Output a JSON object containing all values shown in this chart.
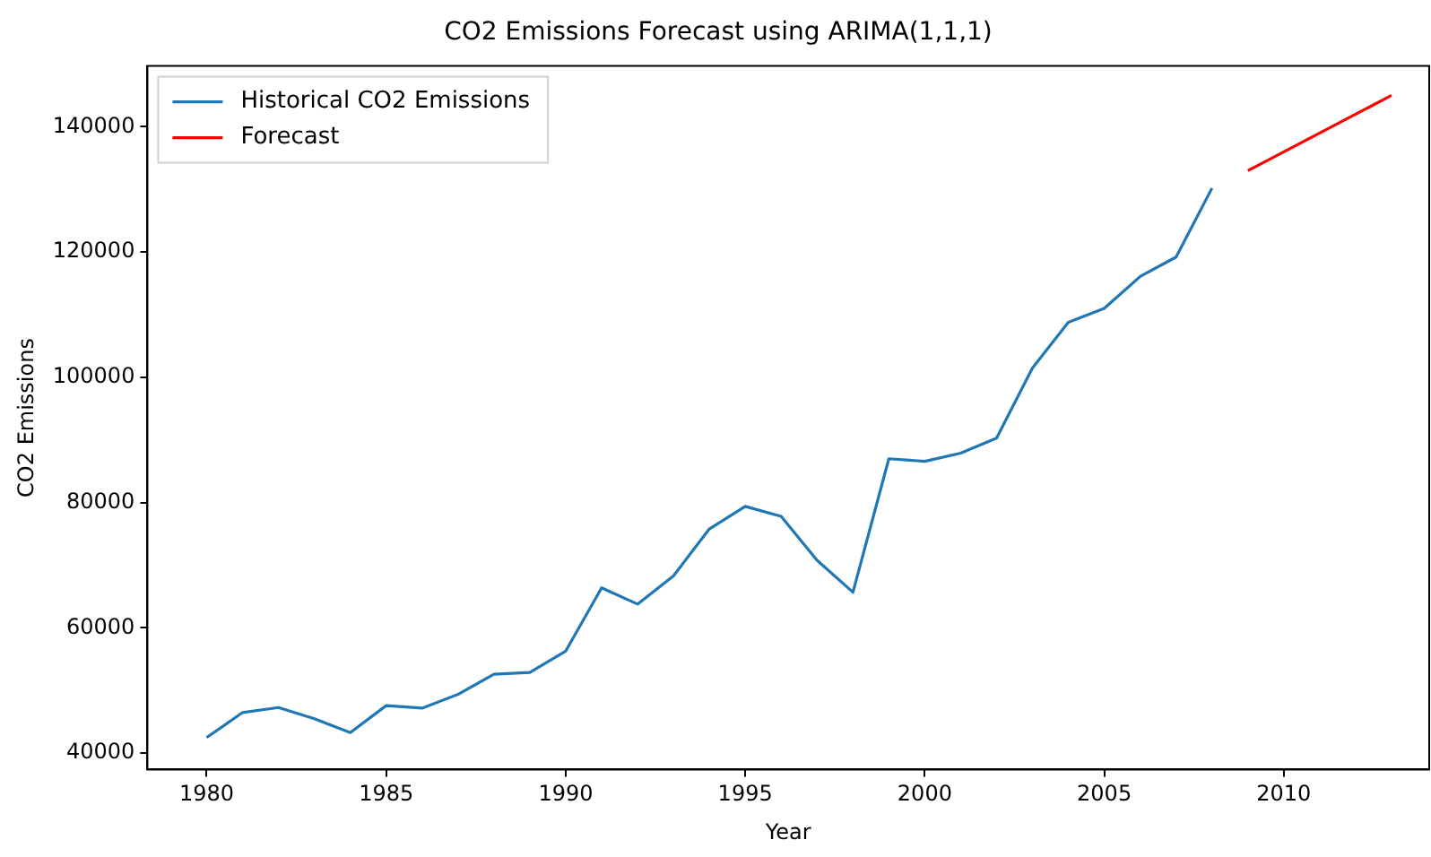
{
  "chart_data": {
    "type": "line",
    "title": "CO2 Emissions Forecast using ARIMA(1,1,1)",
    "xlabel": "Year",
    "ylabel": "CO2 Emissions",
    "xlim": [
      1978.35,
      2014.05
    ],
    "xticks": [
      1980,
      1985,
      1990,
      1995,
      2000,
      2005,
      2010
    ],
    "ylim": [
      37400,
      149700
    ],
    "yticks": [
      40000,
      60000,
      80000,
      100000,
      120000,
      140000
    ],
    "grid": false,
    "legend": "top left",
    "line_style": "solid",
    "marker": "none",
    "series": [
      {
        "name": "Historical CO2 Emissions",
        "color": "#1f77b4",
        "x": [
          1980,
          1981,
          1982,
          1983,
          1984,
          1985,
          1986,
          1987,
          1988,
          1989,
          1990,
          1991,
          1992,
          1993,
          1994,
          1995,
          1996,
          1997,
          1998,
          1999,
          2000,
          2001,
          2002,
          2003,
          2004,
          2005,
          2006,
          2007,
          2008
        ],
        "values": [
          42500,
          46500,
          47300,
          45500,
          43300,
          47600,
          47200,
          49400,
          52600,
          52900,
          56300,
          66400,
          63800,
          68300,
          75800,
          79400,
          77800,
          70800,
          65700,
          87000,
          86600,
          87900,
          90300,
          101500,
          108800,
          111000,
          116100,
          119200,
          130200
        ]
      },
      {
        "name": "Forecast",
        "color": "#ff0000",
        "x": [
          2009,
          2010,
          2011,
          2012,
          2013
        ],
        "values": [
          133000,
          136000,
          139000,
          142000,
          145000
        ]
      }
    ]
  }
}
